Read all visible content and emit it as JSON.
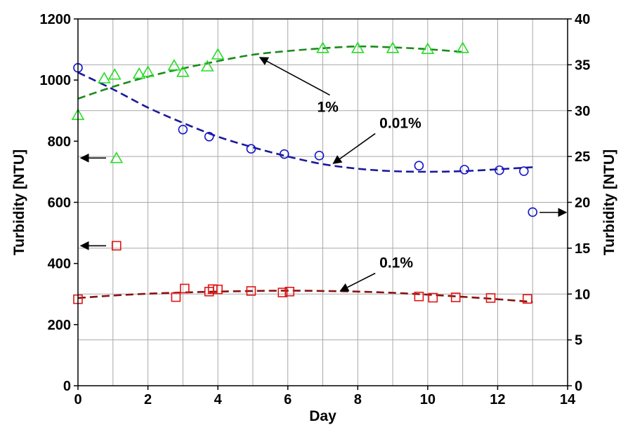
{
  "chart_data": {
    "type": "scatter",
    "title": "",
    "xlabel": "Day",
    "ylabel_left": "Turbidity [NTU]",
    "ylabel_right": "Turbidity [NTU]",
    "xlim": [
      0,
      14
    ],
    "ylim_left": [
      0,
      1200
    ],
    "ylim_right": [
      0,
      40
    ],
    "x_ticks": [
      0,
      2,
      4,
      6,
      8,
      10,
      12,
      14
    ],
    "y_left_ticks": [
      0,
      200,
      400,
      600,
      800,
      1000,
      1200
    ],
    "y_right_ticks": [
      0,
      5,
      10,
      15,
      20,
      25,
      30,
      35,
      40
    ],
    "grid": true,
    "series": [
      {
        "name": "1%",
        "axis": "right",
        "marker": "triangle",
        "color": "#22dd22",
        "trend_color": "#1a8a1a",
        "x": [
          0,
          0.75,
          1.05,
          1.75,
          2.0,
          2.75,
          3.0,
          3.7,
          4.0,
          7.0,
          8.0,
          9.0,
          10.0,
          11.0
        ],
        "y": [
          29.5,
          33.5,
          33.9,
          34.0,
          34.2,
          34.9,
          34.2,
          34.8,
          36.1,
          36.8,
          36.8,
          36.8,
          36.7,
          36.8
        ],
        "trend_x": [
          0,
          1,
          2,
          3,
          4,
          5,
          6,
          7,
          8,
          9,
          10,
          11
        ],
        "trend_y": [
          31.3,
          32.6,
          33.7,
          34.6,
          35.4,
          36.1,
          36.5,
          36.8,
          37.0,
          36.9,
          36.7,
          36.4
        ],
        "outlier": {
          "x": 1.1,
          "y": 24.8
        },
        "annotation": {
          "text": "1%",
          "arrow_to": [
            5.2,
            35.8
          ],
          "arrow_from": [
            7.2,
            31.7
          ]
        }
      },
      {
        "name": "0.01%",
        "axis": "left",
        "marker": "circle",
        "color": "#1515cc",
        "trend_color": "#1a1a99",
        "x": [
          0,
          3.0,
          3.75,
          4.95,
          5.9,
          6.9,
          9.75,
          11.05,
          12.05,
          12.75
        ],
        "y": [
          1040,
          838,
          815,
          775,
          758,
          753,
          720,
          707,
          705,
          702
        ],
        "trend_x": [
          0,
          1,
          2,
          3,
          4,
          5,
          6,
          7,
          8,
          9,
          10,
          11,
          12,
          13
        ],
        "trend_y": [
          1025,
          970,
          910,
          860,
          815,
          780,
          750,
          725,
          710,
          702,
          700,
          702,
          708,
          715
        ],
        "outlier": {
          "x": 13.0,
          "y": 568
        },
        "annotation": {
          "text": "0.01%",
          "arrow_to": [
            7.3,
            727
          ],
          "arrow_from": [
            8.5,
            825
          ]
        }
      },
      {
        "name": "0.1%",
        "axis": "left",
        "marker": "square",
        "color": "#e01515",
        "trend_color": "#8a1010",
        "x": [
          0,
          2.8,
          3.05,
          3.75,
          3.85,
          4.0,
          4.95,
          5.85,
          6.05,
          9.75,
          10.15,
          10.8,
          11.8,
          12.85
        ],
        "y": [
          283,
          290,
          318,
          308,
          316,
          315,
          310,
          305,
          308,
          292,
          288,
          289,
          287,
          284
        ],
        "trend_x": [
          0,
          1,
          2,
          3,
          4,
          5,
          6,
          7,
          8,
          9,
          10,
          11,
          12,
          13
        ],
        "trend_y": [
          287,
          295,
          301,
          305,
          308,
          310,
          311,
          310,
          308,
          304,
          298,
          291,
          283,
          274
        ],
        "outlier": {
          "x": 1.1,
          "y": 458
        },
        "annotation": {
          "text": "0.1%",
          "arrow_to": [
            7.5,
            310
          ],
          "arrow_from": [
            8.5,
            368
          ]
        }
      }
    ],
    "axis_indicators": [
      {
        "side": "left",
        "axis_value": 745,
        "axis": "left"
      },
      {
        "side": "left",
        "axis_value": 458,
        "axis": "left"
      },
      {
        "side": "right",
        "axis_value": 18.9,
        "axis": "right"
      }
    ]
  }
}
